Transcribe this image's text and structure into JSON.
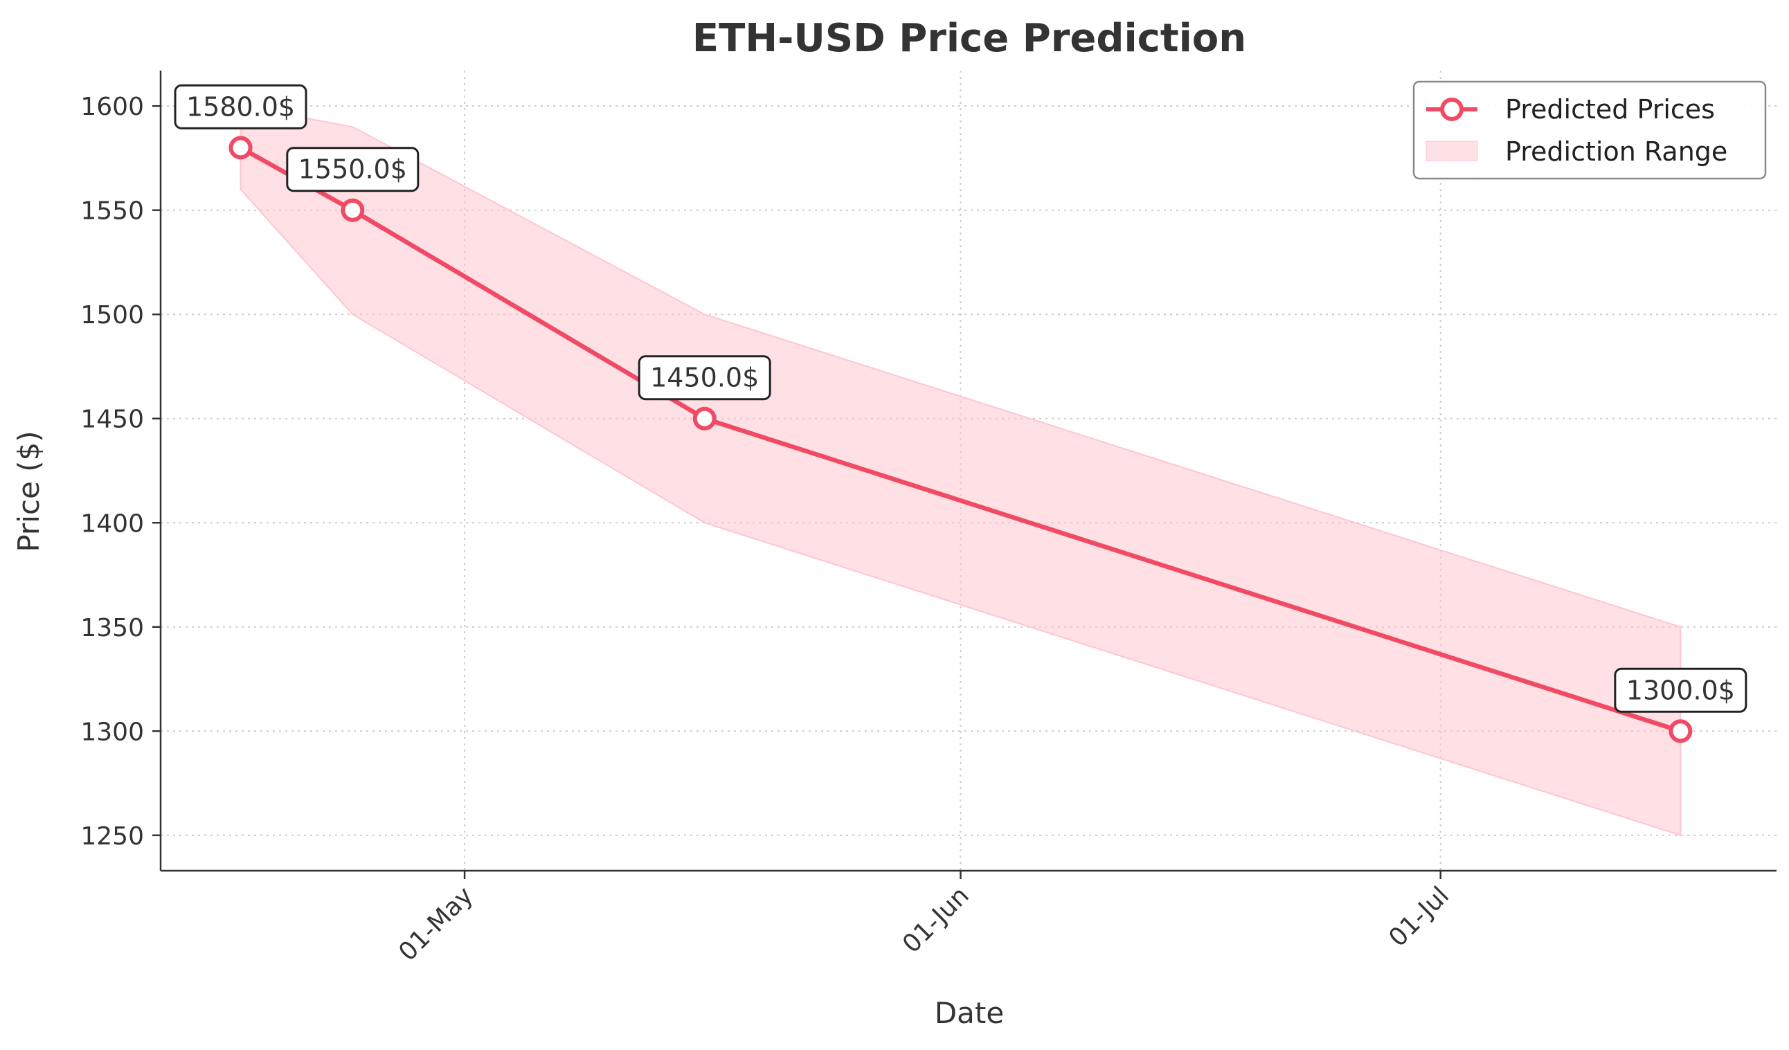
{
  "colors": {
    "line": "#f04a65",
    "band": "#ffc6d0",
    "grid": "#cccccc",
    "axis": "#333333"
  },
  "chart_data": {
    "type": "line",
    "title": "ETH-USD Price Prediction",
    "xlabel": "Date",
    "ylabel": "Price ($)",
    "x_ticks": [
      {
        "date": "2023-05-01",
        "label": "01-May"
      },
      {
        "date": "2023-06-01",
        "label": "01-Jun"
      },
      {
        "date": "2023-07-01",
        "label": "01-Jul"
      }
    ],
    "y_ticks": [
      1250,
      1300,
      1350,
      1400,
      1450,
      1500,
      1550,
      1600
    ],
    "xlim": [
      "2023-04-12",
      "2023-07-22"
    ],
    "ylim": [
      1233,
      1617
    ],
    "grid": true,
    "legend_position": "top-right",
    "series": [
      {
        "name": "Predicted Prices",
        "kind": "line-marker",
        "x": [
          "2023-04-17",
          "2023-04-24",
          "2023-05-16",
          "2023-07-16"
        ],
        "values": [
          1580,
          1550,
          1450,
          1300
        ],
        "annotations": [
          "1580.0$",
          "1550.0$",
          "1450.0$",
          "1300.0$"
        ]
      },
      {
        "name": "Prediction Range",
        "kind": "band",
        "x": [
          "2023-04-17",
          "2023-04-24",
          "2023-05-16",
          "2023-07-16"
        ],
        "lower": [
          1560,
          1500,
          1400,
          1250
        ],
        "upper": [
          1600,
          1590,
          1500,
          1350
        ]
      }
    ]
  }
}
